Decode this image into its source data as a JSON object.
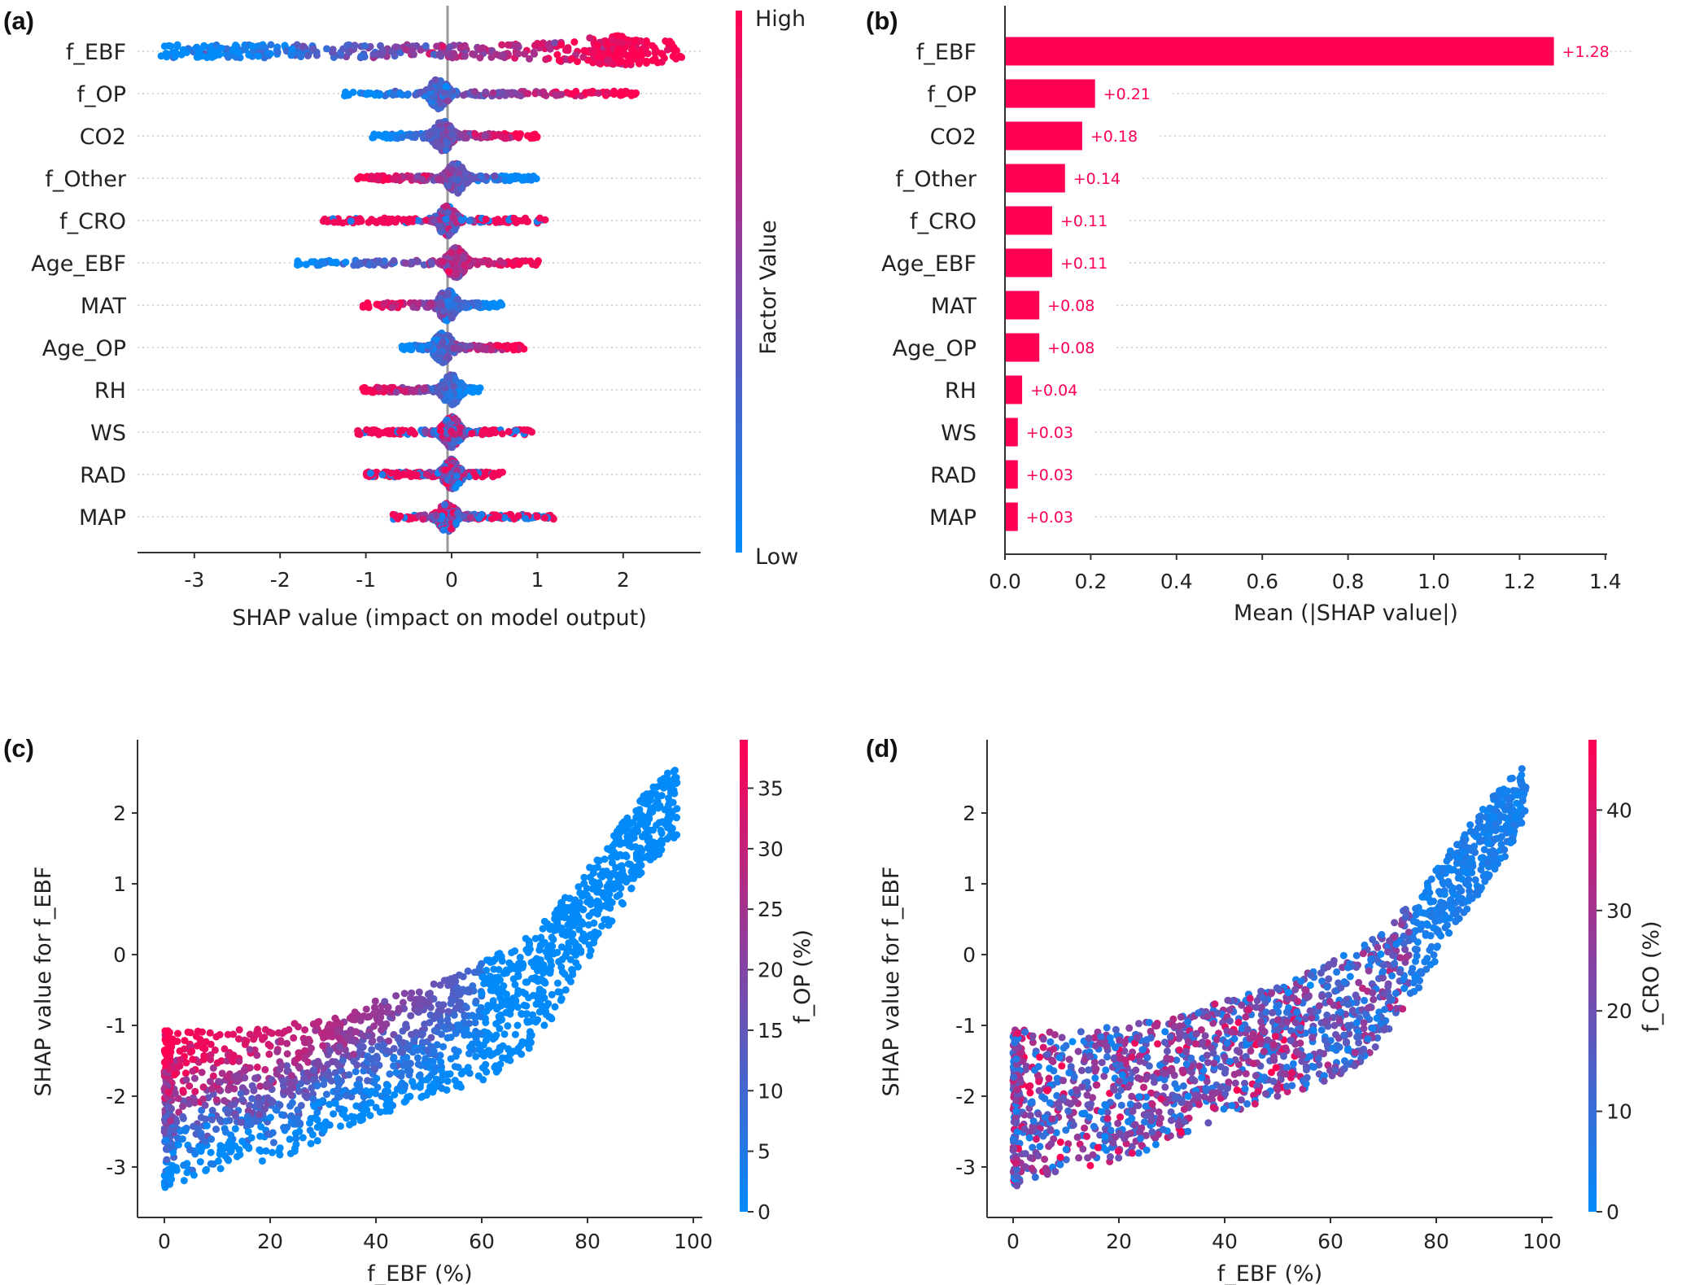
{
  "colors": {
    "low": "#008bfb",
    "high": "#ff0052",
    "axis": "#333333",
    "zero_line": "#999999",
    "grid": "#cccccc"
  },
  "chart_data": [
    {
      "panel_label": "(a)",
      "type": "scatter",
      "subtype": "shap-beeswarm",
      "xlabel": "SHAP value (impact on model output)",
      "xticks": [
        -3,
        -2,
        -1,
        0,
        1,
        2
      ],
      "xlim": [
        -3.7,
        2.9
      ],
      "colorbar": {
        "label": "Factor Value",
        "high_label": "High",
        "low_label": "Low"
      },
      "features": [
        {
          "name": "f_EBF",
          "min": -3.4,
          "max": 2.7,
          "dense_at": 1.95,
          "high_value_effect": "positive"
        },
        {
          "name": "f_OP",
          "min": -1.3,
          "max": 2.15,
          "dense_at": -0.15,
          "high_value_effect": "positive"
        },
        {
          "name": "CO2",
          "min": -0.95,
          "max": 1.0,
          "dense_at": -0.1,
          "high_value_effect": "positive"
        },
        {
          "name": "f_Other",
          "min": -1.1,
          "max": 1.0,
          "dense_at": 0.05,
          "high_value_effect": "negative"
        },
        {
          "name": "f_CRO",
          "min": -1.5,
          "max": 1.1,
          "dense_at": -0.05,
          "high_value_effect": "mixed"
        },
        {
          "name": "Age_EBF",
          "min": -1.85,
          "max": 1.05,
          "dense_at": 0.05,
          "high_value_effect": "positive"
        },
        {
          "name": "MAT",
          "min": -1.05,
          "max": 0.6,
          "dense_at": -0.05,
          "high_value_effect": "negative"
        },
        {
          "name": "Age_OP",
          "min": -0.6,
          "max": 0.85,
          "dense_at": -0.1,
          "high_value_effect": "positive"
        },
        {
          "name": "RH",
          "min": -1.05,
          "max": 0.35,
          "dense_at": 0.0,
          "high_value_effect": "negative"
        },
        {
          "name": "WS",
          "min": -1.1,
          "max": 0.95,
          "dense_at": 0.0,
          "high_value_effect": "mixed"
        },
        {
          "name": "RAD",
          "min": -1.0,
          "max": 0.6,
          "dense_at": 0.0,
          "high_value_effect": "mixed"
        },
        {
          "name": "MAP",
          "min": -0.7,
          "max": 1.2,
          "dense_at": -0.05,
          "high_value_effect": "mixed"
        }
      ]
    },
    {
      "panel_label": "(b)",
      "type": "bar",
      "orientation": "horizontal",
      "xlabel": "Mean (|SHAP value|)",
      "xticks": [
        "0.0",
        "0.2",
        "0.4",
        "0.6",
        "0.8",
        "1.0",
        "1.2",
        "1.4"
      ],
      "xlim": [
        0,
        1.4
      ],
      "categories": [
        "f_EBF",
        "f_OP",
        "CO2",
        "f_Other",
        "f_CRO",
        "Age_EBF",
        "MAT",
        "Age_OP",
        "RH",
        "WS",
        "RAD",
        "MAP"
      ],
      "values": [
        1.28,
        0.21,
        0.18,
        0.14,
        0.11,
        0.11,
        0.08,
        0.08,
        0.04,
        0.03,
        0.03,
        0.03
      ],
      "value_labels": [
        "+1.28",
        "+0.21",
        "+0.18",
        "+0.14",
        "+0.11",
        "+0.11",
        "+0.08",
        "+0.08",
        "+0.04",
        "+0.03",
        "+0.03",
        "+0.03"
      ]
    },
    {
      "panel_label": "(c)",
      "type": "scatter",
      "subtype": "shap-dependence",
      "xlabel": "f_EBF (%)",
      "ylabel": "SHAP value for f_EBF",
      "xticks": [
        0,
        20,
        40,
        60,
        80,
        100
      ],
      "yticks": [
        2,
        1,
        0,
        -1,
        -2,
        -3
      ],
      "xlim": [
        -5,
        102
      ],
      "ylim": [
        -3.6,
        3.0
      ],
      "colorbar": {
        "label": "f_OP (%)",
        "ticks": [
          0,
          5,
          10,
          15,
          20,
          25,
          30,
          35
        ],
        "range": [
          0,
          39
        ]
      },
      "color_trend": "high f_OP at upper edge of band for f_EBF < 60; low f_OP for f_EBF > 60",
      "envelope": [
        {
          "x": 0,
          "y_min": -3.3,
          "y_max": -1.05
        },
        {
          "x": 10,
          "y_min": -3.05,
          "y_max": -1.1
        },
        {
          "x": 20,
          "y_min": -2.95,
          "y_max": -1.0
        },
        {
          "x": 30,
          "y_min": -2.6,
          "y_max": -0.9
        },
        {
          "x": 40,
          "y_min": -2.3,
          "y_max": -0.65
        },
        {
          "x": 50,
          "y_min": -2.0,
          "y_max": -0.45
        },
        {
          "x": 60,
          "y_min": -1.8,
          "y_max": -0.1
        },
        {
          "x": 70,
          "y_min": -1.3,
          "y_max": 0.3
        },
        {
          "x": 80,
          "y_min": -0.1,
          "y_max": 1.2
        },
        {
          "x": 90,
          "y_min": 1.1,
          "y_max": 2.2
        },
        {
          "x": 97,
          "y_min": 1.7,
          "y_max": 2.7
        }
      ]
    },
    {
      "panel_label": "(d)",
      "type": "scatter",
      "subtype": "shap-dependence",
      "xlabel": "f_EBF (%)",
      "ylabel": "SHAP value for f_EBF",
      "xticks": [
        0,
        20,
        40,
        60,
        80,
        100
      ],
      "yticks": [
        2,
        1,
        0,
        -1,
        -2,
        -3
      ],
      "xlim": [
        -5,
        102
      ],
      "ylim": [
        -3.6,
        3.0
      ],
      "colorbar": {
        "label": "f_CRO (%)",
        "ticks": [
          0,
          10,
          20,
          30,
          40
        ],
        "range": [
          0,
          47
        ]
      },
      "color_trend": "mixed high/medium f_CRO for f_EBF < 75; low f_CRO for f_EBF > 75",
      "envelope": [
        {
          "x": 0,
          "y_min": -3.3,
          "y_max": -1.05
        },
        {
          "x": 10,
          "y_min": -3.05,
          "y_max": -1.1
        },
        {
          "x": 20,
          "y_min": -2.95,
          "y_max": -1.0
        },
        {
          "x": 30,
          "y_min": -2.6,
          "y_max": -0.9
        },
        {
          "x": 40,
          "y_min": -2.3,
          "y_max": -0.65
        },
        {
          "x": 50,
          "y_min": -2.0,
          "y_max": -0.45
        },
        {
          "x": 60,
          "y_min": -1.8,
          "y_max": -0.1
        },
        {
          "x": 70,
          "y_min": -1.3,
          "y_max": 0.3
        },
        {
          "x": 80,
          "y_min": -0.1,
          "y_max": 1.2
        },
        {
          "x": 90,
          "y_min": 1.1,
          "y_max": 2.2
        },
        {
          "x": 97,
          "y_min": 1.7,
          "y_max": 2.7
        }
      ]
    }
  ]
}
